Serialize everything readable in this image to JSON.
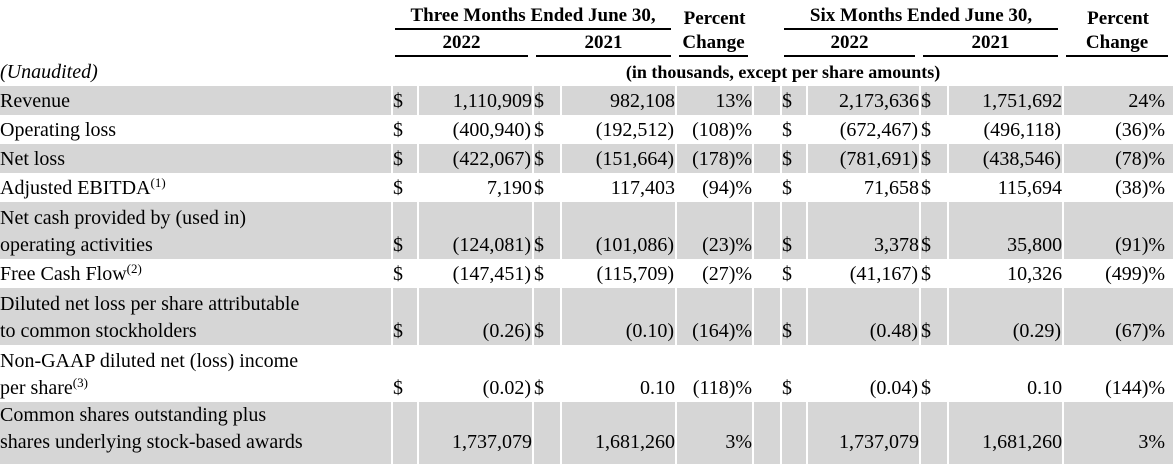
{
  "note": "(Unaudited)",
  "units_caption": "(in thousands, except per share amounts)",
  "colors": {
    "row_shade": "#d6d6d6",
    "text": "#000000",
    "background": "#ffffff"
  },
  "header": {
    "group1": "Three Months Ended June 30,",
    "group2": "Six Months Ended June 30,",
    "percent": "Percent",
    "change": "Change",
    "year_2022": "2022",
    "year_2021": "2021"
  },
  "rows": [
    {
      "label_lines": [
        "Revenue"
      ],
      "sup": "",
      "shaded": true,
      "cells": [
        "$",
        "1,110,909",
        "$",
        "982,108",
        "13%",
        "$",
        "2,173,636",
        "$",
        "1,751,692",
        "24%"
      ]
    },
    {
      "label_lines": [
        "Operating loss"
      ],
      "sup": "",
      "shaded": false,
      "cells": [
        "$",
        "(400,940)",
        "$",
        "(192,512)",
        "(108)%",
        "$",
        "(672,467)",
        "$",
        "(496,118)",
        "(36)%"
      ]
    },
    {
      "label_lines": [
        "Net loss"
      ],
      "sup": "",
      "shaded": true,
      "cells": [
        "$",
        "(422,067)",
        "$",
        "(151,664)",
        "(178)%",
        "$",
        "(781,691)",
        "$",
        "(438,546)",
        "(78)%"
      ]
    },
    {
      "label_lines": [
        "Adjusted EBITDA"
      ],
      "sup": "(1)",
      "shaded": false,
      "cells": [
        "$",
        "7,190",
        "$",
        "117,403",
        "(94)%",
        "$",
        "71,658",
        "$",
        "115,694",
        "(38)%"
      ]
    },
    {
      "label_lines": [
        "Net cash provided by (used in)",
        "operating activities"
      ],
      "sup": "",
      "shaded": true,
      "cells": [
        "$",
        "(124,081)",
        "$",
        "(101,086)",
        "(23)%",
        "$",
        "3,378",
        "$",
        "35,800",
        "(91)%"
      ]
    },
    {
      "label_lines": [
        "Free Cash Flow"
      ],
      "sup": "(2)",
      "shaded": false,
      "cells": [
        "$",
        "(147,451)",
        "$",
        "(115,709)",
        "(27)%",
        "$",
        "(41,167)",
        "$",
        "10,326",
        "(499)%"
      ]
    },
    {
      "label_lines": [
        "Diluted net loss per share attributable",
        "to common stockholders"
      ],
      "sup": "",
      "shaded": true,
      "cells": [
        "$",
        "(0.26)",
        "$",
        "(0.10)",
        "(164)%",
        "$",
        "(0.48)",
        "$",
        "(0.29)",
        "(67)%"
      ]
    },
    {
      "label_lines": [
        "Non-GAAP diluted net (loss) income",
        "per share"
      ],
      "sup": "(3)",
      "shaded": false,
      "cells": [
        "$",
        "(0.02)",
        "$",
        "0.10",
        "(118)%",
        "$",
        "(0.04)",
        "$",
        "0.10",
        "(144)%"
      ]
    },
    {
      "label_lines": [
        "Common shares outstanding plus",
        "shares underlying stock-based awards"
      ],
      "sup": "",
      "shaded": true,
      "cells": [
        "",
        "1,737,079",
        "",
        "1,681,260",
        "3%",
        "",
        "1,737,079",
        "",
        "1,681,260",
        "3%"
      ]
    }
  ]
}
